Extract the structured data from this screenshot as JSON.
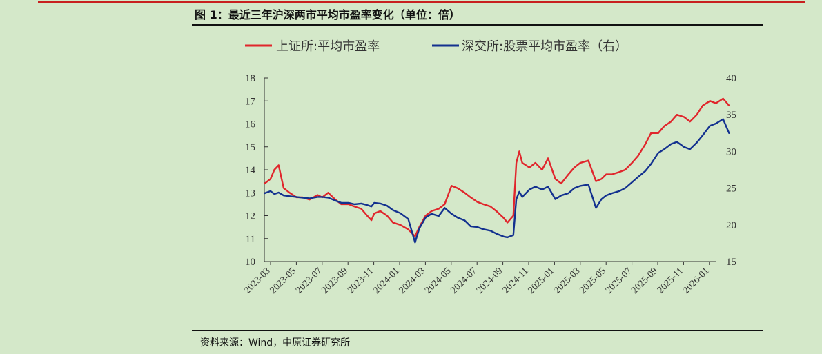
{
  "figure": {
    "title": "图 1：最近三年沪深两市平均市盈率变化（单位：倍）",
    "source": "资料来源：Wind，中原证券研究所"
  },
  "colors": {
    "background": "#d4e8c9",
    "accent_rule": "#c8201f",
    "sse_line": "#e0262c",
    "szse_line": "#13318f"
  },
  "chart_data": {
    "type": "line",
    "x_ticks": [
      "2023-03",
      "2023-05",
      "2023-07",
      "2023-09",
      "2023-11",
      "2024-01",
      "2024-03",
      "2024-05",
      "2024-07",
      "2024-09",
      "2024-11",
      "2025-01",
      "2025-03",
      "2025-05",
      "2025-07",
      "2025-09",
      "2025-11",
      "2026-01"
    ],
    "y_left": {
      "ticks": [
        "10",
        "11",
        "12",
        "13",
        "14",
        "15",
        "16",
        "17",
        "18"
      ],
      "range": [
        10,
        18
      ]
    },
    "y_right": {
      "ticks": [
        "15",
        "20",
        "25",
        "30",
        "35",
        "40"
      ],
      "range": [
        15,
        40
      ]
    },
    "legend_position": "top",
    "grid": false,
    "series": [
      {
        "name": "上证所:平均市盈率",
        "axis": "left",
        "x": [
          "2023-02-15",
          "2023-03-01",
          "2023-03-10",
          "2023-03-20",
          "2023-04-01",
          "2023-04-15",
          "2023-05-01",
          "2023-05-15",
          "2023-06-01",
          "2023-06-20",
          "2023-07-01",
          "2023-07-15",
          "2023-08-01",
          "2023-08-15",
          "2023-09-01",
          "2023-09-15",
          "2023-10-01",
          "2023-10-15",
          "2023-10-25",
          "2023-11-01",
          "2023-11-15",
          "2023-12-01",
          "2023-12-15",
          "2024-01-01",
          "2024-01-20",
          "2024-02-05",
          "2024-02-15",
          "2024-03-01",
          "2024-03-15",
          "2024-04-01",
          "2024-04-15",
          "2024-05-01",
          "2024-05-15",
          "2024-06-01",
          "2024-06-15",
          "2024-07-01",
          "2024-07-15",
          "2024-08-01",
          "2024-08-15",
          "2024-09-01",
          "2024-09-10",
          "2024-09-24",
          "2024-10-01",
          "2024-10-08",
          "2024-10-15",
          "2024-11-01",
          "2024-11-15",
          "2024-12-01",
          "2024-12-15",
          "2025-01-01",
          "2025-01-15",
          "2025-02-01",
          "2025-02-15",
          "2025-03-01",
          "2025-03-20",
          "2025-04-07",
          "2025-04-20",
          "2025-05-01",
          "2025-05-15",
          "2025-06-01",
          "2025-06-15",
          "2025-07-01",
          "2025-07-15",
          "2025-08-01",
          "2025-08-15",
          "2025-09-01",
          "2025-09-15",
          "2025-10-01",
          "2025-10-15",
          "2025-11-01",
          "2025-11-15",
          "2025-12-01",
          "2025-12-15",
          "2026-01-01",
          "2026-01-15",
          "2026-02-01",
          "2026-02-15"
        ],
        "y": [
          13.4,
          13.6,
          14.0,
          14.2,
          13.2,
          13.0,
          12.8,
          12.8,
          12.7,
          12.9,
          12.8,
          13.0,
          12.7,
          12.5,
          12.5,
          12.4,
          12.3,
          12.0,
          11.8,
          12.1,
          12.2,
          12.0,
          11.7,
          11.6,
          11.4,
          11.1,
          11.5,
          12.0,
          12.2,
          12.3,
          12.5,
          13.3,
          13.2,
          13.0,
          12.8,
          12.6,
          12.5,
          12.4,
          12.2,
          11.9,
          11.7,
          12.0,
          14.3,
          14.8,
          14.3,
          14.1,
          14.3,
          14.0,
          14.5,
          13.6,
          13.4,
          13.8,
          14.1,
          14.3,
          14.4,
          13.5,
          13.6,
          13.8,
          13.8,
          13.9,
          14.0,
          14.3,
          14.6,
          15.1,
          15.6,
          15.6,
          15.9,
          16.1,
          16.4,
          16.3,
          16.1,
          16.4,
          16.8,
          17.0,
          16.9,
          17.1,
          16.8
        ]
      },
      {
        "name": "深交所:股票平均市盈率（右）",
        "axis": "right",
        "x": [
          "2023-02-15",
          "2023-03-01",
          "2023-03-10",
          "2023-03-20",
          "2023-04-01",
          "2023-04-15",
          "2023-05-01",
          "2023-05-15",
          "2023-06-01",
          "2023-06-20",
          "2023-07-01",
          "2023-07-15",
          "2023-08-01",
          "2023-08-15",
          "2023-09-01",
          "2023-09-15",
          "2023-10-01",
          "2023-10-15",
          "2023-10-25",
          "2023-11-01",
          "2023-11-15",
          "2023-12-01",
          "2023-12-15",
          "2024-01-01",
          "2024-01-20",
          "2024-02-05",
          "2024-02-15",
          "2024-03-01",
          "2024-03-15",
          "2024-04-01",
          "2024-04-15",
          "2024-05-01",
          "2024-05-15",
          "2024-06-01",
          "2024-06-15",
          "2024-07-01",
          "2024-07-15",
          "2024-08-01",
          "2024-08-15",
          "2024-09-01",
          "2024-09-10",
          "2024-09-24",
          "2024-10-01",
          "2024-10-08",
          "2024-10-15",
          "2024-11-01",
          "2024-11-15",
          "2024-12-01",
          "2024-12-15",
          "2025-01-01",
          "2025-01-15",
          "2025-02-01",
          "2025-02-15",
          "2025-03-01",
          "2025-03-20",
          "2025-04-07",
          "2025-04-20",
          "2025-05-01",
          "2025-05-15",
          "2025-06-01",
          "2025-06-15",
          "2025-07-01",
          "2025-07-15",
          "2025-08-01",
          "2025-08-15",
          "2025-09-01",
          "2025-09-15",
          "2025-10-01",
          "2025-10-15",
          "2025-11-01",
          "2025-11-15",
          "2025-12-01",
          "2025-12-15",
          "2026-01-01",
          "2026-01-15",
          "2026-02-01",
          "2026-02-15"
        ],
        "y": [
          24.3,
          24.6,
          24.2,
          24.4,
          24.0,
          23.9,
          23.8,
          23.7,
          23.6,
          23.8,
          23.8,
          23.7,
          23.3,
          23.0,
          23.0,
          22.8,
          22.9,
          22.7,
          22.5,
          23.0,
          22.9,
          22.6,
          22.0,
          21.6,
          20.8,
          17.6,
          19.5,
          21.0,
          21.5,
          21.2,
          22.3,
          21.5,
          21.0,
          20.6,
          19.8,
          19.7,
          19.4,
          19.2,
          18.8,
          18.4,
          18.3,
          18.6,
          23.5,
          24.5,
          23.8,
          24.8,
          25.2,
          24.8,
          25.2,
          23.5,
          24.0,
          24.3,
          25.0,
          25.3,
          25.5,
          22.3,
          23.5,
          24.0,
          24.3,
          24.6,
          25.0,
          25.8,
          26.5,
          27.3,
          28.3,
          29.8,
          30.3,
          31.0,
          31.3,
          30.6,
          30.3,
          31.2,
          32.2,
          33.5,
          33.8,
          34.4,
          32.5
        ]
      }
    ]
  }
}
